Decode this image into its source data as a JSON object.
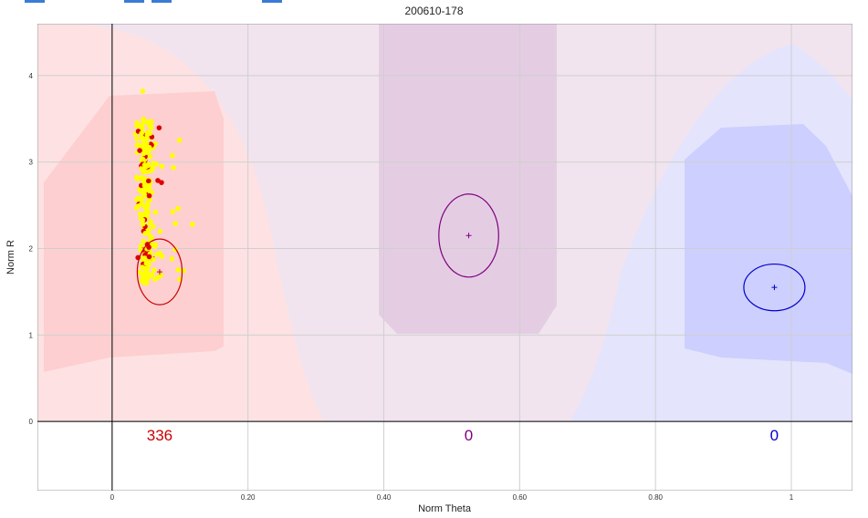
{
  "chart_data": {
    "type": "scatter",
    "title": "200610-178",
    "xlabel": "Norm Theta",
    "ylabel": "Norm R",
    "xlim": [
      -0.11,
      1.09
    ],
    "ylim": [
      -0.8,
      4.6
    ],
    "x_ticks": [
      0,
      0.2,
      0.4,
      0.6,
      0.8,
      1
    ],
    "x_tick_labels": [
      "0",
      "0.20",
      "0.40",
      "0.60",
      "0.80",
      "1"
    ],
    "y_ticks": [
      0,
      1,
      2,
      3,
      4
    ],
    "y_tick_labels": [
      "0",
      "1",
      "2",
      "3",
      "4"
    ],
    "grid": true,
    "clusters": [
      {
        "color": "#cc0000",
        "center": [
          0.07,
          1.73
        ],
        "ellipse_radii": [
          0.033,
          0.38
        ],
        "count_label": "336"
      },
      {
        "color": "#800080",
        "center": [
          0.525,
          2.15
        ],
        "ellipse_radii": [
          0.044,
          0.48
        ],
        "count_label": "0"
      },
      {
        "color": "#0000cc",
        "center": [
          0.975,
          1.55
        ],
        "ellipse_radii": [
          0.045,
          0.27
        ],
        "count_label": "0"
      }
    ],
    "point_color": "#ffff00",
    "point_outline_color": "#dd0000"
  },
  "toolbar": {
    "button_color": "#3a7bd5"
  }
}
